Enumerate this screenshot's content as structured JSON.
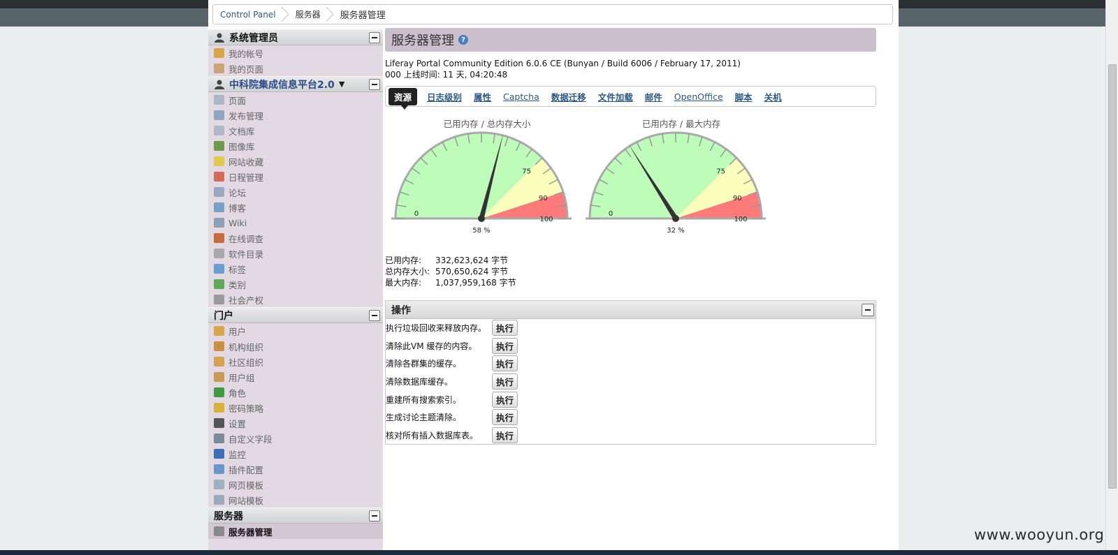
{
  "breadcrumb": [
    {
      "label": "Control Panel"
    },
    {
      "label": "服务器"
    },
    {
      "label": "服务器管理"
    }
  ],
  "sidebar": {
    "sections": [
      {
        "title": "系统管理员",
        "icon": "user-icon",
        "items": [
          {
            "label": "我的帐号",
            "icon": "account-icon",
            "color": "#d9a54b"
          },
          {
            "label": "我的页面",
            "icon": "pages-icon",
            "color": "#c7a77a"
          }
        ]
      },
      {
        "title": "中科院集成信息平台2.0",
        "title_dropdown": "▼",
        "icon": "group-icon",
        "items": [
          {
            "label": "页面",
            "icon": "page-icon",
            "color": "#aab7c4"
          },
          {
            "label": "发布管理",
            "icon": "publish-icon",
            "color": "#8fa6c1"
          },
          {
            "label": "文档库",
            "icon": "document-library-icon",
            "color": "#b0b9c7"
          },
          {
            "label": "图像库",
            "icon": "image-gallery-icon",
            "color": "#6d9a4f"
          },
          {
            "label": "网站收藏",
            "icon": "bookmarks-icon",
            "color": "#e2c84d"
          },
          {
            "label": "日程管理",
            "icon": "calendar-icon",
            "color": "#d36a5a"
          },
          {
            "label": "论坛",
            "icon": "forum-icon",
            "color": "#9aa8c0"
          },
          {
            "label": "博客",
            "icon": "blog-icon",
            "color": "#7aa0c8"
          },
          {
            "label": "Wiki",
            "icon": "wiki-icon",
            "color": "#8ea0b5"
          },
          {
            "label": "在线调查",
            "icon": "poll-icon",
            "color": "#c76b3d"
          },
          {
            "label": "软件目录",
            "icon": "software-catalog-icon",
            "color": "#a9a9a9"
          },
          {
            "label": "标签",
            "icon": "tag-icon",
            "color": "#6a9ed0"
          },
          {
            "label": "类别",
            "icon": "category-icon",
            "color": "#5fa85a"
          },
          {
            "label": "社会产权",
            "icon": "social-equity-icon",
            "color": "#9a9a9a"
          }
        ]
      },
      {
        "title": "门户",
        "icon": "",
        "items": [
          {
            "label": "用户",
            "icon": "user-icon",
            "color": "#d9a54b"
          },
          {
            "label": "机构组织",
            "icon": "organization-icon",
            "color": "#c9913d"
          },
          {
            "label": "社区组织",
            "icon": "community-icon",
            "color": "#d7a152"
          },
          {
            "label": "用户组",
            "icon": "user-group-icon",
            "color": "#c99a55"
          },
          {
            "label": "角色",
            "icon": "role-icon",
            "color": "#3f9a3f"
          },
          {
            "label": "密码策略",
            "icon": "password-policy-icon",
            "color": "#d8b23c"
          },
          {
            "label": "设置",
            "icon": "gear-icon",
            "color": "#555555"
          },
          {
            "label": "自定义字段",
            "icon": "custom-fields-icon",
            "color": "#7d8a99"
          },
          {
            "label": "监控",
            "icon": "monitoring-icon",
            "color": "#3d6fb5"
          },
          {
            "label": "插件配置",
            "icon": "plugin-icon",
            "color": "#6a97c9"
          },
          {
            "label": "网页模板",
            "icon": "page-template-icon",
            "color": "#9fb0c2"
          },
          {
            "label": "网站模板",
            "icon": "site-template-icon",
            "color": "#9aaabb"
          }
        ]
      },
      {
        "title": "服务器",
        "icon": "",
        "items": [
          {
            "label": "服务器管理",
            "icon": "server-icon",
            "color": "#8a8a8a",
            "active": true
          }
        ]
      }
    ]
  },
  "main": {
    "title": "服务器管理",
    "help_icon": "?",
    "version": "Liferay Portal Community Edition 6.0.6 CE (Bunyan / Build 6006 / February 17, 2011)",
    "uptime": "000 上线时间: 11 天, 04:20:48",
    "tabs": [
      {
        "label": "资源",
        "active": true
      },
      {
        "label": "日志级别"
      },
      {
        "label": "属性"
      },
      {
        "label": "Captcha",
        "en": true
      },
      {
        "label": "数据迁移"
      },
      {
        "label": "文件加载"
      },
      {
        "label": "邮件"
      },
      {
        "label": "OpenOffice",
        "en": true
      },
      {
        "label": "脚本"
      },
      {
        "label": "关机"
      }
    ],
    "gauges": [
      {
        "title": "已用内存 / 总内存大小",
        "value": 58,
        "readout": "58 %",
        "labels": [
          "0",
          "75",
          "90",
          "100"
        ]
      },
      {
        "title": "已用内存 / 最大内存",
        "value": 32,
        "readout": "32 %",
        "labels": [
          "0",
          "75",
          "90",
          "100"
        ]
      }
    ],
    "gauge_colors": {
      "green": "#bdfcb9",
      "yellow": "#fbfdbb",
      "red": "#fc7a7a",
      "needle": "#333333"
    },
    "memory": [
      {
        "label": "已用内存:",
        "value": "332,623,624 字节"
      },
      {
        "label": "总内存大小:",
        "value": "570,650,624 字节"
      },
      {
        "label": "最大内存:",
        "value": "1,037,959,168 字节"
      }
    ],
    "operations": {
      "title": "操作",
      "button_label": "执行",
      "rows": [
        "执行垃圾回收来释放内存。",
        "清除此VM 缓存的内容。",
        "清除各群集的缓存。",
        "清除数据库缓存。",
        "重建所有搜索索引。",
        "生成讨论主题清除。",
        "核对所有插入数据库表。"
      ]
    }
  },
  "watermark": "www.wooyun.org"
}
